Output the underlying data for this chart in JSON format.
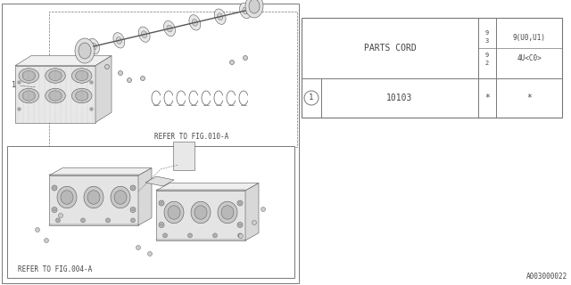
{
  "bg_color": "#ffffff",
  "line_color": "#777777",
  "text_color": "#444444",
  "dark_color": "#333333",
  "parts_cord_label": "PARTS CORD",
  "col_narrow_text": "9\n3\n9\n2",
  "col_narrow_top": "9",
  "col_narrow_mid1": "3",
  "col_narrow_mid2": "9",
  "col_narrow_bot": "2",
  "col2_header_top": "9(U0,U1)",
  "col2_header_bot": "4U<C0>",
  "row1_num": "1",
  "row1_part": "10103",
  "row1_val1": "*",
  "row1_val2": "*",
  "footer_code": "A003000022",
  "ref_upper": "REFER TO FIG.010-A",
  "ref_lower": "REFER TO FIG.004-A",
  "font_size_small": 5.5,
  "font_size_table": 7,
  "font_size_footer": 5.5
}
